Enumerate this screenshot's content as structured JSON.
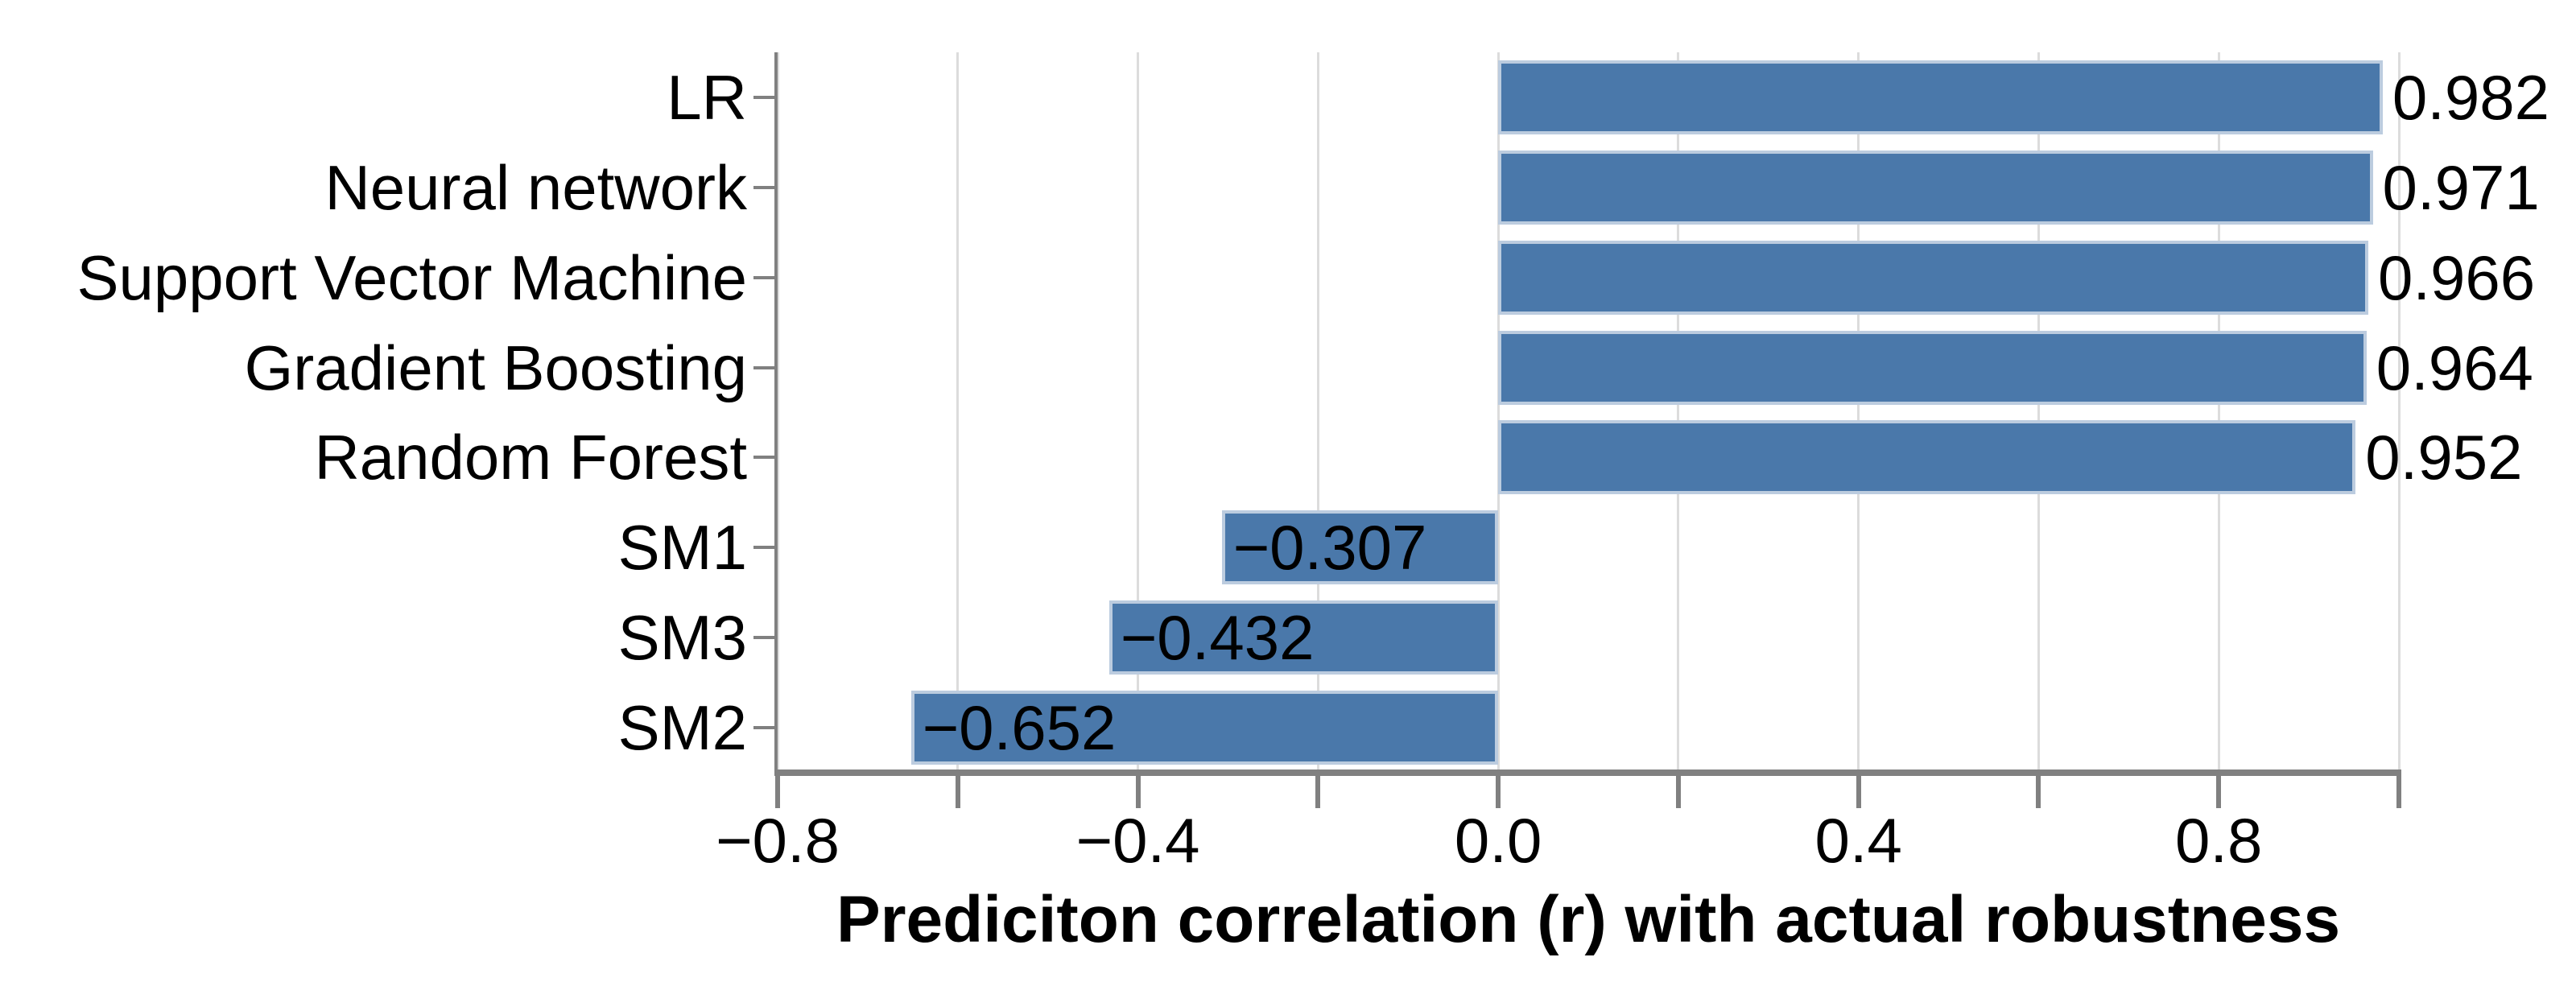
{
  "chart_data": {
    "type": "bar",
    "orientation": "horizontal",
    "title": "",
    "xlabel": "Prediciton correlation (r) with actual robustness",
    "ylabel": "",
    "categories": [
      "LR",
      "Neural network",
      "Support Vector Machine",
      "Gradient Boosting",
      "Random Forest",
      "SM1",
      "SM3",
      "SM2"
    ],
    "values": [
      0.982,
      0.971,
      0.966,
      0.964,
      0.952,
      -0.307,
      -0.432,
      -0.652
    ],
    "bar_labels": [
      "0.982",
      "0.971",
      "0.966",
      "0.964",
      "0.952",
      "−0.307",
      "−0.432",
      "−0.652"
    ],
    "xlim": [
      -0.8,
      1.0
    ],
    "x_ticks_all": [
      -0.8,
      -0.6,
      -0.4,
      -0.2,
      0.0,
      0.2,
      0.4,
      0.6,
      0.8,
      1.0
    ],
    "x_ticks_labeled": [
      -0.8,
      -0.4,
      0.0,
      0.4,
      0.8
    ],
    "x_tick_labels": [
      "−0.8",
      "−0.4",
      "0.0",
      "0.4",
      "0.8"
    ],
    "grid": "vertical",
    "legend": null,
    "colors": {
      "bar_fill": "#4a78aa",
      "bar_edge": "#bcccdf",
      "spine": "#808080",
      "grid": "#dcdcdc",
      "text": "#000000",
      "background": "#ffffff"
    }
  }
}
